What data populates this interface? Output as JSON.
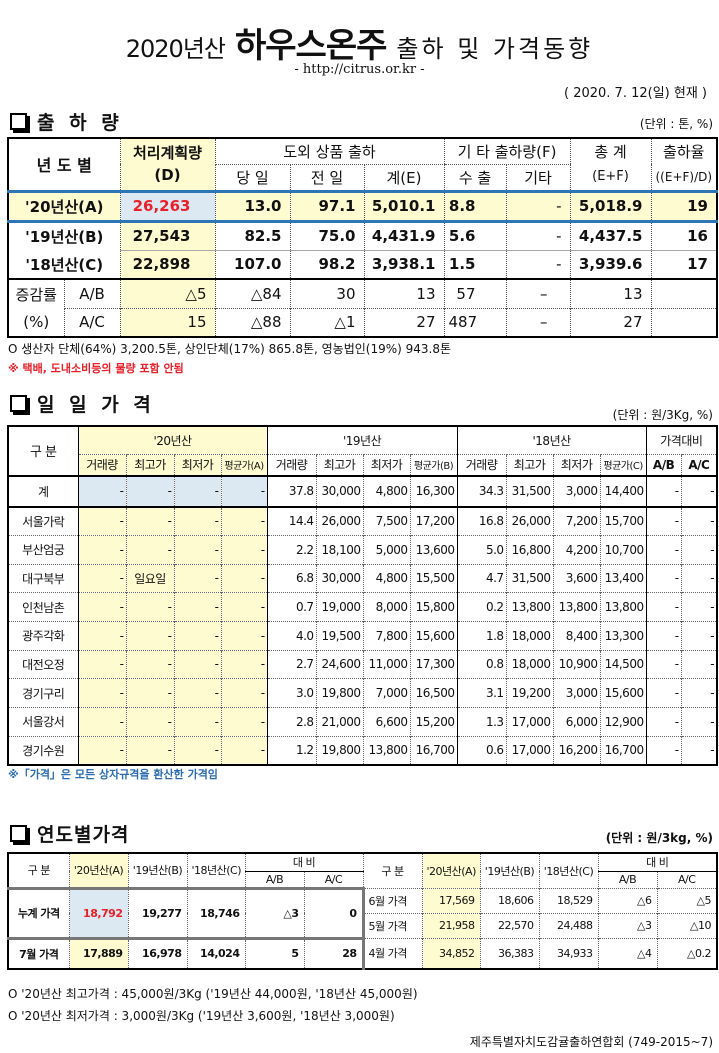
{
  "header": {
    "prefix": "2020년산",
    "main": "하우스온주",
    "suffix": "출하 및 가격동향",
    "url": "- http://citrus.or.kr -",
    "date": "( 2020.  7. 12(일) 현재 )"
  },
  "shipment": {
    "title": "출 하 량",
    "unit": "(단위 : 톤, %)",
    "headers": {
      "year": "년 도 별",
      "plan": "처리계획량",
      "plan_sub": "(D)",
      "outside": "도외 상품 출하",
      "today": "당 일",
      "prev": "전 일",
      "sum": "계(E)",
      "other": "기 타 출하량(F)",
      "export": "수 출",
      "etc": "기타",
      "total": "총   계",
      "total_sub": "(E+F)",
      "rate": "출하율",
      "rate_sub": "((E+F)/D)"
    },
    "rows": [
      {
        "label": "'20년산(A)",
        "plan": "26,263",
        "today": "13.0",
        "prev": "97.1",
        "sum": "5,010.1",
        "export": "8.8",
        "etc": "-",
        "total": "5,018.9",
        "rate": "19"
      },
      {
        "label": "'19년산(B)",
        "plan": "27,543",
        "today": "82.5",
        "prev": "75.0",
        "sum": "4,431.9",
        "export": "5.6",
        "etc": "-",
        "total": "4,437.5",
        "rate": "16"
      },
      {
        "label": "'18년산(C)",
        "plan": "22,898",
        "today": "107.0",
        "prev": "98.2",
        "sum": "3,938.1",
        "export": "1.5",
        "etc": "-",
        "total": "3,939.6",
        "rate": "17"
      }
    ],
    "change_label": "증감률",
    "change_pct": "(%)",
    "change": [
      {
        "label": "A/B",
        "plan": "△5",
        "today": "△84",
        "prev": "30",
        "sum": "13",
        "export": "57",
        "etc": "–",
        "total": "13",
        "rate": ""
      },
      {
        "label": "A/C",
        "plan": "15",
        "today": "△88",
        "prev": "△1",
        "sum": "27",
        "export": "487",
        "etc": "–",
        "total": "27",
        "rate": ""
      }
    ],
    "note1": "O 생산자 단체(64%) 3,200.5톤,   상인단체(17%) 865.8톤,  영농법인(19%) 943.8톤",
    "note2": "※ 택배, 도내소비등의 물량 포함 안됨"
  },
  "daily": {
    "title": "일 일 가 격",
    "unit": "(단위 : 원/3Kg, %)",
    "headers": {
      "div": "구  분",
      "y20": "'20년산",
      "y19": "'19년산",
      "y18": "'18년산",
      "cmp": "가격대비",
      "sub20": [
        "거래량",
        "최고가",
        "최저가",
        "평균가(A)"
      ],
      "sub19": [
        "거래량",
        "최고가",
        "최저가",
        "평균가(B)"
      ],
      "sub18": [
        "거래량",
        "최고가",
        "최저가",
        "평균가(C)"
      ],
      "subcmp": [
        "A/B",
        "A/C"
      ]
    },
    "rows": [
      [
        "계",
        "-",
        "-",
        "-",
        "-",
        "37.8",
        "30,000",
        "4,800",
        "16,300",
        "34.3",
        "31,500",
        "3,000",
        "14,400",
        "-",
        "-"
      ],
      [
        "서울가락",
        "-",
        "-",
        "-",
        "-",
        "14.4",
        "26,000",
        "7,500",
        "17,200",
        "16.8",
        "26,000",
        "7,200",
        "15,700",
        "-",
        "-"
      ],
      [
        "부산엄궁",
        "-",
        "-",
        "-",
        "-",
        "2.2",
        "18,100",
        "5,000",
        "13,600",
        "5.0",
        "16,800",
        "4,200",
        "10,700",
        "-",
        "-"
      ],
      [
        "대구북부",
        "-",
        "일요일",
        "-",
        "-",
        "6.8",
        "30,000",
        "4,800",
        "15,500",
        "4.7",
        "31,500",
        "3,600",
        "13,400",
        "-",
        "-"
      ],
      [
        "인천남촌",
        "-",
        "-",
        "-",
        "-",
        "0.7",
        "19,000",
        "8,000",
        "15,800",
        "0.2",
        "13,800",
        "13,800",
        "13,800",
        "-",
        "-"
      ],
      [
        "광주각화",
        "-",
        "-",
        "-",
        "-",
        "4.0",
        "19,500",
        "7,800",
        "15,600",
        "1.8",
        "18,000",
        "8,400",
        "13,300",
        "-",
        "-"
      ],
      [
        "대전오정",
        "-",
        "-",
        "-",
        "-",
        "2.7",
        "24,600",
        "11,000",
        "17,300",
        "0.8",
        "18,000",
        "10,900",
        "14,500",
        "-",
        "-"
      ],
      [
        "경기구리",
        "-",
        "-",
        "-",
        "-",
        "3.0",
        "19,800",
        "7,000",
        "16,500",
        "3.1",
        "19,200",
        "3,000",
        "15,600",
        "-",
        "-"
      ],
      [
        "서울강서",
        "-",
        "-",
        "-",
        "-",
        "2.8",
        "21,000",
        "6,600",
        "15,200",
        "1.3",
        "17,000",
        "6,000",
        "12,900",
        "-",
        "-"
      ],
      [
        "경기수원",
        "-",
        "-",
        "-",
        "-",
        "1.2",
        "19,800",
        "13,800",
        "16,700",
        "0.6",
        "17,000",
        "16,200",
        "16,700",
        "-",
        "-"
      ]
    ],
    "note": "※「가격」은 모든 상자규격을 환산한 가격임"
  },
  "yearly": {
    "title": "연도별가격",
    "unit": "(단위 : 원/3kg, %)",
    "headers": {
      "div": "구    분",
      "a": "'20년산(A)",
      "b": "'19년산(B)",
      "c": "'18년산(C)",
      "cmp": "대    비",
      "ab": "A/B",
      "ac": "A/C"
    },
    "left": [
      {
        "label": "누계 가격",
        "a": "18,792",
        "b": "19,277",
        "c": "18,746",
        "ab": "△3",
        "ac": "0"
      },
      {
        "label": "7월 가격",
        "a": "17,889",
        "b": "16,978",
        "c": "14,024",
        "ab": "5",
        "ac": "28"
      }
    ],
    "right": [
      {
        "label": "6월 가격",
        "a": "17,569",
        "b": "18,606",
        "c": "18,529",
        "ab": "△6",
        "ac": "△5"
      },
      {
        "label": "5월 가격",
        "a": "21,958",
        "b": "22,570",
        "c": "24,488",
        "ab": "△3",
        "ac": "△10"
      },
      {
        "label": "4월 가격",
        "a": "34,852",
        "b": "36,383",
        "c": "34,933",
        "ab": "△4",
        "ac": "△0.2"
      }
    ],
    "note1": "O  '20년산 최고가격 : 45,000원/3Kg ('19년산 44,000원, '18년산 45,000원)",
    "note2": "O  '20년산 최저가격 :   3,000원/3Kg ('19년산   3,600원, '18년산  3,000원)",
    "footer": "제주특별자치도감귤출하연합회 (749-2015~7)"
  },
  "colors": {
    "highlight_yellow": "#fffbd0",
    "highlight_blue": "#dde9f2",
    "accent_red": "#e8202a",
    "divider_blue": "#2e75b6"
  }
}
